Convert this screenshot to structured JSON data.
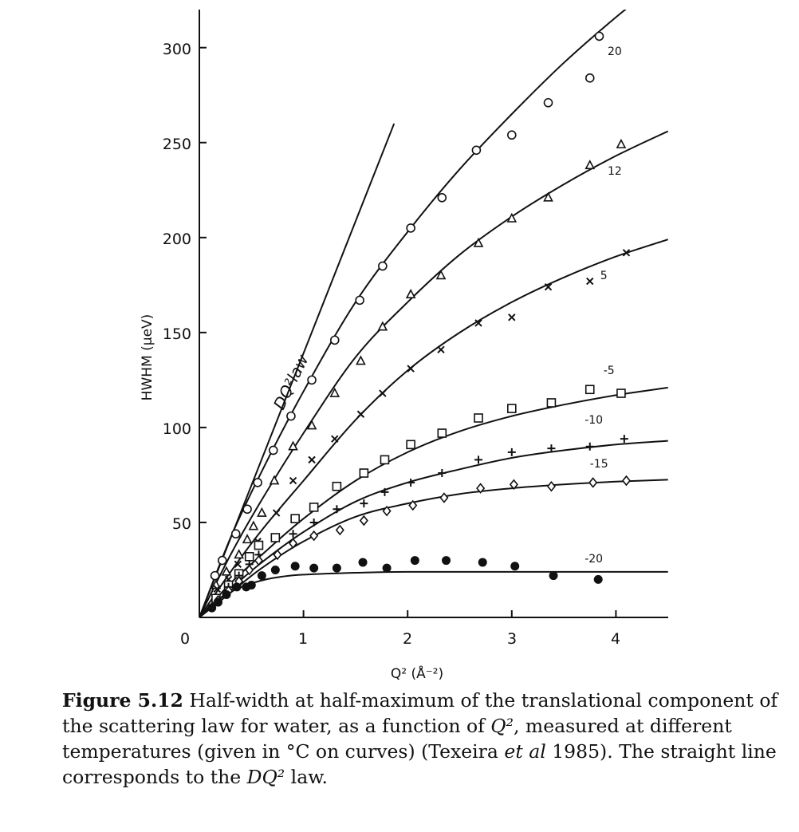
{
  "chart_data": {
    "type": "scatter",
    "xlabel": "Q² (Å⁻²)",
    "ylabel": "HWHM (µeV)",
    "xlim": [
      0,
      4.5
    ],
    "ylim": [
      0,
      320
    ],
    "x_ticks": [
      "0",
      "1",
      "2",
      "3",
      "4"
    ],
    "y_ticks": [
      "50",
      "100",
      "150",
      "200",
      "250",
      "300"
    ],
    "grid": false,
    "legend": "none (temperature labels written next to the curves)",
    "annotation": "DQ²law",
    "series": [
      {
        "name": "20",
        "marker": "open-circle",
        "points": [
          [
            0.15,
            22
          ],
          [
            0.22,
            30
          ],
          [
            0.35,
            44
          ],
          [
            0.46,
            57
          ],
          [
            0.56,
            71
          ],
          [
            0.71,
            88
          ],
          [
            0.88,
            106
          ],
          [
            1.08,
            125
          ],
          [
            1.3,
            146
          ],
          [
            1.54,
            167
          ],
          [
            1.76,
            185
          ],
          [
            2.03,
            205
          ],
          [
            2.33,
            221
          ],
          [
            2.66,
            246
          ],
          [
            3.0,
            254
          ],
          [
            3.35,
            271
          ],
          [
            3.75,
            284
          ],
          [
            3.84,
            306
          ]
        ],
        "fit": [
          [
            0,
            0
          ],
          [
            0.3,
            42
          ],
          [
            0.6,
            77
          ],
          [
            1.0,
            119
          ],
          [
            1.5,
            166
          ],
          [
            2.0,
            203
          ],
          [
            2.5,
            236
          ],
          [
            3.0,
            265
          ],
          [
            3.5,
            292
          ],
          [
            4.0,
            316
          ],
          [
            4.35,
            331
          ]
        ]
      },
      {
        "name": "12",
        "marker": "open-triangle",
        "points": [
          [
            0.16,
            17
          ],
          [
            0.26,
            24
          ],
          [
            0.38,
            33
          ],
          [
            0.46,
            41
          ],
          [
            0.52,
            48
          ],
          [
            0.6,
            55
          ],
          [
            0.72,
            72
          ],
          [
            0.9,
            90
          ],
          [
            1.08,
            101
          ],
          [
            1.3,
            118
          ],
          [
            1.55,
            135
          ],
          [
            1.76,
            153
          ],
          [
            2.03,
            170
          ],
          [
            2.32,
            180
          ],
          [
            2.68,
            197
          ],
          [
            3.0,
            210
          ],
          [
            3.35,
            221
          ],
          [
            3.75,
            238
          ],
          [
            4.05,
            249
          ]
        ],
        "fit": [
          [
            0,
            0
          ],
          [
            0.3,
            33
          ],
          [
            0.6,
            62
          ],
          [
            1.0,
            97
          ],
          [
            1.5,
            137
          ],
          [
            2.0,
            166
          ],
          [
            2.5,
            191
          ],
          [
            3.0,
            211
          ],
          [
            3.5,
            228
          ],
          [
            4.0,
            243
          ],
          [
            4.5,
            256
          ]
        ]
      },
      {
        "name": "5",
        "marker": "cross",
        "points": [
          [
            0.17,
            15
          ],
          [
            0.28,
            20
          ],
          [
            0.37,
            28
          ],
          [
            0.48,
            32
          ],
          [
            0.56,
            40
          ],
          [
            0.74,
            55
          ],
          [
            0.9,
            72
          ],
          [
            1.08,
            83
          ],
          [
            1.3,
            94
          ],
          [
            1.55,
            107
          ],
          [
            1.76,
            118
          ],
          [
            2.03,
            131
          ],
          [
            2.32,
            141
          ],
          [
            2.68,
            155
          ],
          [
            3.0,
            158
          ],
          [
            3.35,
            174
          ],
          [
            3.75,
            177
          ],
          [
            4.1,
            192
          ]
        ],
        "fit": [
          [
            0,
            0
          ],
          [
            0.3,
            24
          ],
          [
            0.6,
            46
          ],
          [
            1.0,
            72
          ],
          [
            1.5,
            104
          ],
          [
            2.0,
            130
          ],
          [
            2.5,
            150
          ],
          [
            3.0,
            166
          ],
          [
            3.5,
            179
          ],
          [
            4.0,
            190
          ],
          [
            4.5,
            199
          ]
        ]
      },
      {
        "name": "-5",
        "marker": "open-square",
        "points": [
          [
            0.16,
            10
          ],
          [
            0.28,
            17
          ],
          [
            0.38,
            23
          ],
          [
            0.48,
            32
          ],
          [
            0.57,
            38
          ],
          [
            0.73,
            42
          ],
          [
            0.92,
            52
          ],
          [
            1.1,
            58
          ],
          [
            1.32,
            69
          ],
          [
            1.58,
            76
          ],
          [
            1.78,
            83
          ],
          [
            2.03,
            91
          ],
          [
            2.33,
            97
          ],
          [
            2.68,
            105
          ],
          [
            3.0,
            110
          ],
          [
            3.38,
            113
          ],
          [
            3.75,
            120
          ],
          [
            4.05,
            118
          ]
        ],
        "fit": [
          [
            0,
            0
          ],
          [
            0.3,
            18
          ],
          [
            0.6,
            33
          ],
          [
            1.0,
            52
          ],
          [
            1.5,
            72
          ],
          [
            2.0,
            87
          ],
          [
            2.5,
            98
          ],
          [
            3.0,
            106
          ],
          [
            3.5,
            112
          ],
          [
            4.0,
            117
          ],
          [
            4.5,
            121
          ]
        ]
      },
      {
        "name": "-10",
        "marker": "plus",
        "points": [
          [
            0.18,
            9
          ],
          [
            0.28,
            16
          ],
          [
            0.38,
            22
          ],
          [
            0.48,
            28
          ],
          [
            0.57,
            33
          ],
          [
            0.9,
            44
          ],
          [
            1.1,
            50
          ],
          [
            1.32,
            57
          ],
          [
            1.58,
            60
          ],
          [
            1.78,
            66
          ],
          [
            2.03,
            71
          ],
          [
            2.33,
            76
          ],
          [
            2.68,
            83
          ],
          [
            3.0,
            87
          ],
          [
            3.38,
            89
          ],
          [
            3.75,
            90
          ],
          [
            4.08,
            94
          ]
        ],
        "fit": [
          [
            0,
            0
          ],
          [
            0.3,
            15
          ],
          [
            0.6,
            29
          ],
          [
            1.0,
            45
          ],
          [
            1.5,
            61
          ],
          [
            2.0,
            71
          ],
          [
            2.5,
            78
          ],
          [
            3.0,
            84
          ],
          [
            3.5,
            88
          ],
          [
            4.0,
            91
          ],
          [
            4.5,
            93
          ]
        ]
      },
      {
        "name": "-15",
        "marker": "open-diamond",
        "points": [
          [
            0.18,
            9
          ],
          [
            0.28,
            14
          ],
          [
            0.38,
            19
          ],
          [
            0.48,
            25
          ],
          [
            0.57,
            30
          ],
          [
            0.75,
            33
          ],
          [
            0.9,
            39
          ],
          [
            1.1,
            43
          ],
          [
            1.35,
            46
          ],
          [
            1.58,
            51
          ],
          [
            1.8,
            56
          ],
          [
            2.05,
            59
          ],
          [
            2.35,
            63
          ],
          [
            2.7,
            68
          ],
          [
            3.02,
            70
          ],
          [
            3.38,
            69
          ],
          [
            3.78,
            71
          ],
          [
            4.1,
            72
          ]
        ],
        "fit": [
          [
            0,
            0
          ],
          [
            0.3,
            13
          ],
          [
            0.6,
            26
          ],
          [
            1.0,
            40
          ],
          [
            1.5,
            53
          ],
          [
            2.0,
            60
          ],
          [
            2.5,
            65
          ],
          [
            3.0,
            68
          ],
          [
            3.5,
            70
          ],
          [
            4.0,
            71.5
          ],
          [
            4.5,
            72.5
          ]
        ]
      },
      {
        "name": "-20",
        "marker": "filled-circle",
        "points": [
          [
            0.12,
            5
          ],
          [
            0.18,
            8
          ],
          [
            0.26,
            12
          ],
          [
            0.36,
            16
          ],
          [
            0.45,
            16
          ],
          [
            0.5,
            17
          ],
          [
            0.6,
            22
          ],
          [
            0.73,
            25
          ],
          [
            0.92,
            27
          ],
          [
            1.1,
            26
          ],
          [
            1.32,
            26
          ],
          [
            1.57,
            29
          ],
          [
            1.8,
            26
          ],
          [
            2.07,
            30
          ],
          [
            2.37,
            30
          ],
          [
            2.72,
            29
          ],
          [
            3.03,
            27
          ],
          [
            3.4,
            22
          ],
          [
            3.83,
            20
          ]
        ],
        "fit": [
          [
            0,
            0
          ],
          [
            0.2,
            10
          ],
          [
            0.4,
            16
          ],
          [
            0.6,
            19.5
          ],
          [
            0.8,
            21.5
          ],
          [
            1.0,
            22.5
          ],
          [
            1.5,
            23.5
          ],
          [
            2.0,
            24
          ],
          [
            3.0,
            24
          ],
          [
            4.0,
            24
          ],
          [
            4.5,
            24
          ]
        ]
      }
    ],
    "law_line": [
      [
        0,
        0
      ],
      [
        1.87,
        260
      ]
    ]
  },
  "caption": {
    "label": "Figure 5.12",
    "text_1": " Half-width at half-maximum of the translational component of the scattering law for water, as a function of ",
    "q2_1": "Q²",
    "text_2": ", measured at different temperatures (given in °C on curves) (Texeira ",
    "et_al": "et al",
    "text_3": " 1985). The straight line corresponds to the ",
    "dq2": "DQ²",
    "text_4": " law."
  }
}
